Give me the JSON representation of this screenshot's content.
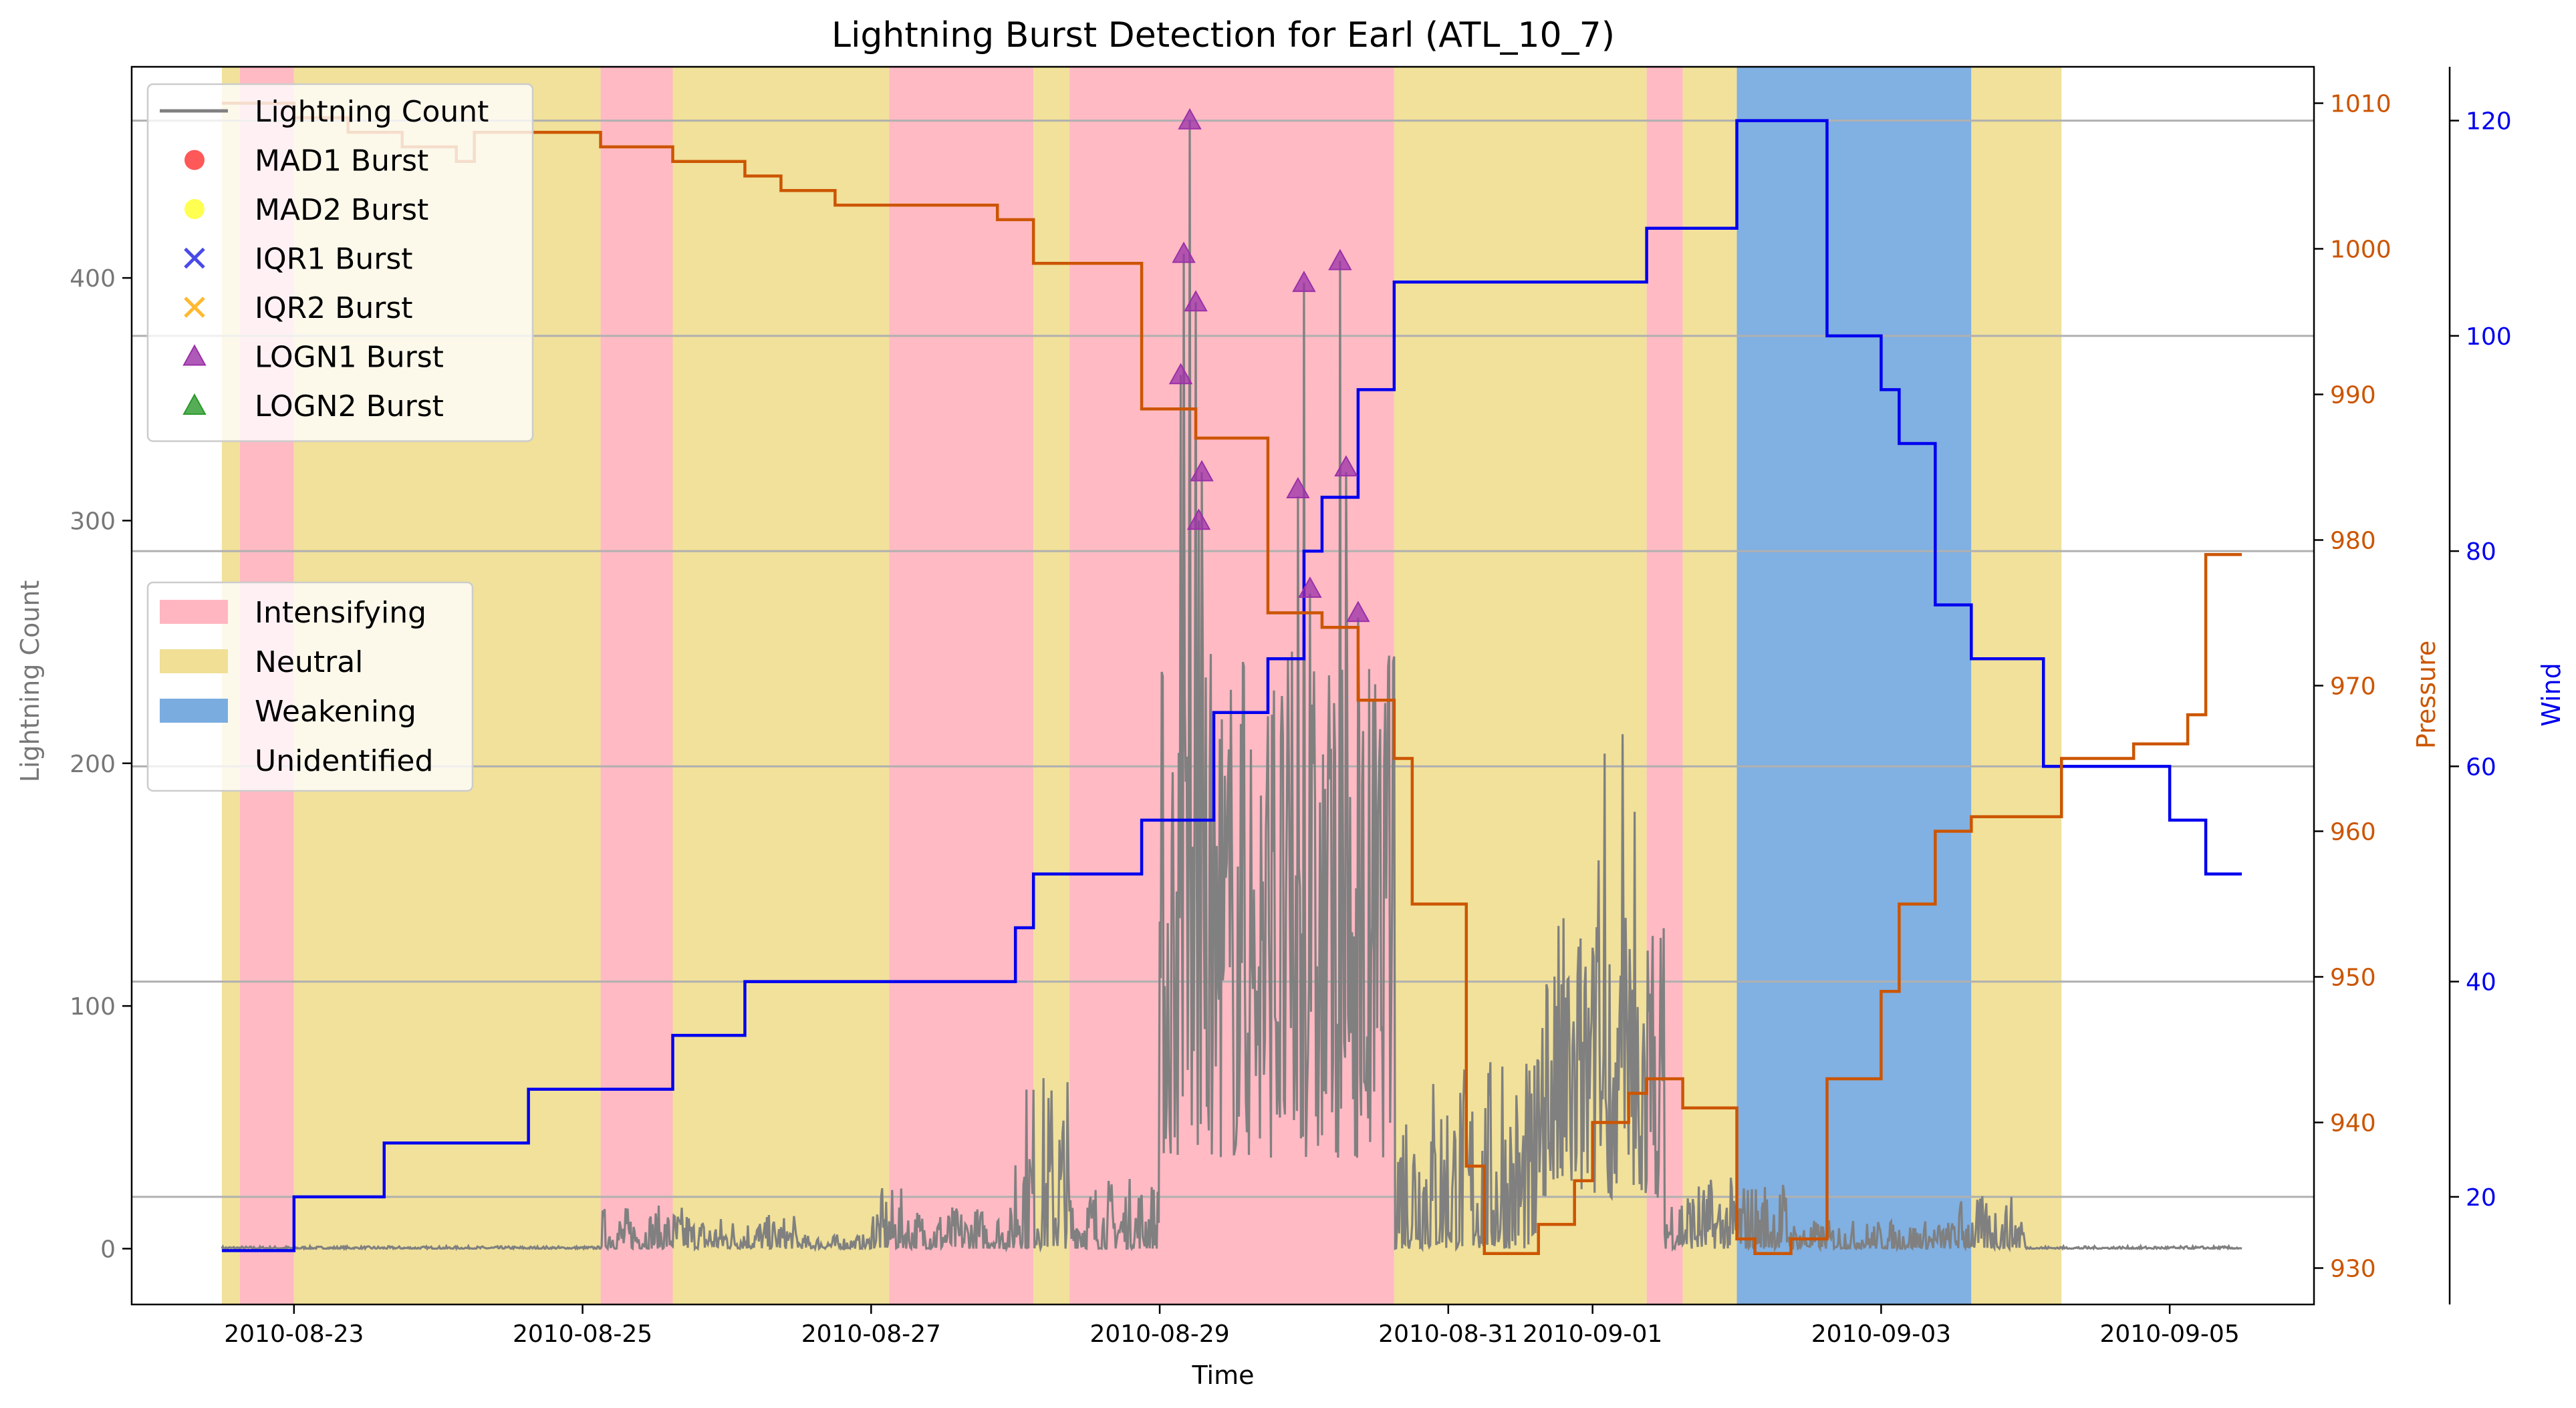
{
  "colors": {
    "intensifying": "#ffb6c1",
    "neutral": "#f0df95",
    "weakening": "#7aace0",
    "lightning": "#808080",
    "pressure": "#cc5500",
    "wind": "#0000ee",
    "logn1": "#9b30a8",
    "mad1": "#ff3b3b",
    "mad2": "#ffff33",
    "iqr1": "#4a4ae8",
    "iqr2": "#ffb830",
    "logn2": "#2a9a2a",
    "grid": "#b0b0b0",
    "axis": "#000000"
  },
  "chart_data": {
    "type": "line",
    "title": "Lightning Burst Detection for Earl (ATL_10_7)",
    "xlabel": "Time",
    "ylabel_left": "Lightning Count",
    "ylabel_pressure": "Pressure",
    "ylabel_wind": "Wind",
    "x_range": [
      "2010-08-21 21:00",
      "2010-09-06 00:00"
    ],
    "y_left_range": [
      -23,
      487
    ],
    "y_pressure_range": [
      927.5,
      1012.5
    ],
    "y_wind_range": [
      10,
      125
    ],
    "x_ticks": [
      "2010-08-23",
      "2010-08-25",
      "2010-08-27",
      "2010-08-29",
      "2010-08-31",
      "2010-09-01",
      "2010-09-03",
      "2010-09-05"
    ],
    "x_tick_values": [
      "2010-08-23",
      "2010-08-25",
      "2010-08-27",
      "2010-08-29",
      "2010-08-31",
      "2010-09-01",
      "2010-09-03",
      "2010-09-05"
    ],
    "y_left_ticks": [
      "0",
      "100",
      "200",
      "300",
      "400"
    ],
    "y_left_tick_values": [
      0,
      100,
      200,
      300,
      400
    ],
    "y_pressure_ticks": [
      "930",
      "940",
      "950",
      "960",
      "970",
      "980",
      "990",
      "1000",
      "1010"
    ],
    "y_pressure_tick_values": [
      930,
      940,
      950,
      960,
      970,
      980,
      990,
      1000,
      1010
    ],
    "y_wind_ticks": [
      "20",
      "40",
      "60",
      "80",
      "100",
      "120"
    ],
    "y_wind_tick_values": [
      20,
      40,
      60,
      80,
      100,
      120
    ],
    "grid": "horizontal (wind axis)",
    "legend_series": [
      {
        "label": "Lightning Count",
        "marker": "line",
        "colorKey": "lightning"
      },
      {
        "label": "MAD1 Burst",
        "marker": "circle",
        "colorKey": "mad1"
      },
      {
        "label": "MAD2 Burst",
        "marker": "circle",
        "colorKey": "mad2"
      },
      {
        "label": "IQR1 Burst",
        "marker": "x",
        "colorKey": "iqr1"
      },
      {
        "label": "IQR2 Burst",
        "marker": "x",
        "colorKey": "iqr2"
      },
      {
        "label": "LOGN1 Burst",
        "marker": "triangle",
        "colorKey": "logn1"
      },
      {
        "label": "LOGN2 Burst",
        "marker": "triangle",
        "colorKey": "logn2"
      }
    ],
    "legend_phases": [
      {
        "label": "Intensifying",
        "colorKey": "intensifying"
      },
      {
        "label": "Neutral",
        "colorKey": "neutral"
      },
      {
        "label": "Weakening",
        "colorKey": "weakening"
      },
      {
        "label": "Unidentified",
        "colorKey": null
      }
    ],
    "phases": [
      {
        "start": "2010-08-22 12:00",
        "end": "2010-08-22 15:00",
        "phase": "neutral"
      },
      {
        "start": "2010-08-22 15:00",
        "end": "2010-08-23 00:00",
        "phase": "intensifying"
      },
      {
        "start": "2010-08-23 00:00",
        "end": "2010-08-25 03:00",
        "phase": "neutral"
      },
      {
        "start": "2010-08-25 03:00",
        "end": "2010-08-25 15:00",
        "phase": "intensifying"
      },
      {
        "start": "2010-08-25 15:00",
        "end": "2010-08-27 03:00",
        "phase": "neutral"
      },
      {
        "start": "2010-08-27 03:00",
        "end": "2010-08-28 03:00",
        "phase": "intensifying"
      },
      {
        "start": "2010-08-28 03:00",
        "end": "2010-08-28 09:00",
        "phase": "neutral"
      },
      {
        "start": "2010-08-28 09:00",
        "end": "2010-08-30 15:00",
        "phase": "intensifying"
      },
      {
        "start": "2010-08-30 15:00",
        "end": "2010-09-01 09:00",
        "phase": "neutral"
      },
      {
        "start": "2010-09-01 09:00",
        "end": "2010-09-01 15:00",
        "phase": "intensifying"
      },
      {
        "start": "2010-09-01 15:00",
        "end": "2010-09-02 00:00",
        "phase": "neutral"
      },
      {
        "start": "2010-09-02 00:00",
        "end": "2010-09-03 15:00",
        "phase": "weakening"
      },
      {
        "start": "2010-09-03 15:00",
        "end": "2010-09-04 06:00",
        "phase": "neutral"
      }
    ],
    "wind_steps": [
      [
        "2010-08-22 12:00",
        15
      ],
      [
        "2010-08-23 00:00",
        20
      ],
      [
        "2010-08-23 15:00",
        25
      ],
      [
        "2010-08-24 15:00",
        30
      ],
      [
        "2010-08-25 15:00",
        35
      ],
      [
        "2010-08-26 03:00",
        40
      ],
      [
        "2010-08-28 00:00",
        45
      ],
      [
        "2010-08-28 03:00",
        50
      ],
      [
        "2010-08-28 21:00",
        55
      ],
      [
        "2010-08-29 09:00",
        65
      ],
      [
        "2010-08-29 18:00",
        70
      ],
      [
        "2010-08-30 00:00",
        80
      ],
      [
        "2010-08-30 03:00",
        85
      ],
      [
        "2010-08-30 09:00",
        95
      ],
      [
        "2010-08-30 15:00",
        105
      ],
      [
        "2010-09-01 09:00",
        110
      ],
      [
        "2010-09-02 00:00",
        120
      ],
      [
        "2010-09-02 15:00",
        100
      ],
      [
        "2010-09-03 00:00",
        95
      ],
      [
        "2010-09-03 03:00",
        90
      ],
      [
        "2010-09-03 09:00",
        75
      ],
      [
        "2010-09-03 15:00",
        70
      ],
      [
        "2010-09-04 03:00",
        60
      ],
      [
        "2010-09-05 00:00",
        55
      ],
      [
        "2010-09-05 06:00",
        50
      ],
      [
        "2010-09-05 12:00",
        50
      ]
    ],
    "pressure_steps": [
      [
        "2010-08-22 12:00",
        1010
      ],
      [
        "2010-08-23 00:00",
        1009
      ],
      [
        "2010-08-23 09:00",
        1008
      ],
      [
        "2010-08-23 18:00",
        1007
      ],
      [
        "2010-08-24 03:00",
        1006
      ],
      [
        "2010-08-24 06:00",
        1008
      ],
      [
        "2010-08-25 03:00",
        1007
      ],
      [
        "2010-08-25 15:00",
        1006
      ],
      [
        "2010-08-26 03:00",
        1005
      ],
      [
        "2010-08-26 09:00",
        1004
      ],
      [
        "2010-08-26 18:00",
        1003
      ],
      [
        "2010-08-27 21:00",
        1002
      ],
      [
        "2010-08-28 03:00",
        999
      ],
      [
        "2010-08-28 21:00",
        989
      ],
      [
        "2010-08-29 06:00",
        987
      ],
      [
        "2010-08-29 18:00",
        975
      ],
      [
        "2010-08-30 03:00",
        974
      ],
      [
        "2010-08-30 09:00",
        969
      ],
      [
        "2010-08-30 15:00",
        965
      ],
      [
        "2010-08-30 18:00",
        955
      ],
      [
        "2010-08-31 03:00",
        937
      ],
      [
        "2010-08-31 06:00",
        931
      ],
      [
        "2010-08-31 15:00",
        933
      ],
      [
        "2010-08-31 21:00",
        936
      ],
      [
        "2010-09-01 00:00",
        940
      ],
      [
        "2010-09-01 06:00",
        942
      ],
      [
        "2010-09-01 09:00",
        943
      ],
      [
        "2010-09-01 15:00",
        941
      ],
      [
        "2010-09-02 00:00",
        932
      ],
      [
        "2010-09-02 03:00",
        931
      ],
      [
        "2010-09-02 09:00",
        932
      ],
      [
        "2010-09-02 15:00",
        943
      ],
      [
        "2010-09-03 00:00",
        949
      ],
      [
        "2010-09-03 03:00",
        955
      ],
      [
        "2010-09-03 09:00",
        960
      ],
      [
        "2010-09-03 15:00",
        961
      ],
      [
        "2010-09-04 06:00",
        965
      ],
      [
        "2010-09-04 18:00",
        966
      ],
      [
        "2010-09-05 03:00",
        968
      ],
      [
        "2010-09-05 06:00",
        979
      ],
      [
        "2010-09-05 12:00",
        979
      ]
    ],
    "lightning_end": "2010-09-05 12:00",
    "lightning_envelope": [
      {
        "start": "2010-08-22 12:00",
        "end": "2010-08-25 03:00",
        "peak": 1
      },
      {
        "start": "2010-08-25 03:00",
        "end": "2010-08-25 18:00",
        "peak": 18
      },
      {
        "start": "2010-08-25 18:00",
        "end": "2010-08-26 12:00",
        "peak": 14
      },
      {
        "start": "2010-08-26 12:00",
        "end": "2010-08-27 00:00",
        "peak": 6
      },
      {
        "start": "2010-08-27 00:00",
        "end": "2010-08-27 06:00",
        "peak": 25
      },
      {
        "start": "2010-08-27 06:00",
        "end": "2010-08-28 00:00",
        "peak": 18
      },
      {
        "start": "2010-08-28 00:00",
        "end": "2010-08-28 09:00",
        "peak": 75
      },
      {
        "start": "2010-08-28 09:00",
        "end": "2010-08-29 00:00",
        "peak": 30
      },
      {
        "start": "2010-08-29 00:00",
        "end": "2010-08-29 12:00",
        "peak": 250
      },
      {
        "start": "2010-08-29 12:00",
        "end": "2010-08-30 15:00",
        "peak": 250
      },
      {
        "start": "2010-08-30 15:00",
        "end": "2010-08-31 15:00",
        "peak": 80
      },
      {
        "start": "2010-08-31 15:00",
        "end": "2010-09-01 12:00",
        "peak": 140
      },
      {
        "start": "2010-09-01 12:00",
        "end": "2010-09-02 09:00",
        "peak": 30
      },
      {
        "start": "2010-09-02 09:00",
        "end": "2010-09-03 12:00",
        "peak": 12
      },
      {
        "start": "2010-09-03 12:00",
        "end": "2010-09-04 00:00",
        "peak": 22
      },
      {
        "start": "2010-09-04 00:00",
        "end": "2010-09-05 12:00",
        "peak": 1
      }
    ],
    "lightning_spikes": [
      [
        "2010-08-29 04:00",
        410
      ],
      [
        "2010-08-29 05:00",
        465
      ],
      [
        "2010-08-29 06:00",
        390
      ],
      [
        "2010-08-29 03:30",
        360
      ],
      [
        "2010-08-29 07:00",
        320
      ],
      [
        "2010-08-29 06:30",
        300
      ],
      [
        "2010-08-29 10:00",
        210
      ],
      [
        "2010-08-29 14:00",
        240
      ],
      [
        "2010-08-29 19:00",
        230
      ],
      [
        "2010-08-29 23:00",
        310
      ],
      [
        "2010-08-30 00:00",
        398
      ],
      [
        "2010-08-30 01:00",
        270
      ],
      [
        "2010-08-30 04:00",
        200
      ],
      [
        "2010-08-30 06:00",
        407
      ],
      [
        "2010-08-30 07:00",
        320
      ],
      [
        "2010-08-30 09:00",
        260
      ],
      [
        "2010-08-30 12:00",
        180
      ],
      [
        "2010-08-30 14:00",
        240
      ],
      [
        "2010-08-30 15:00",
        244
      ],
      [
        "2010-08-31 09:00",
        75
      ],
      [
        "2010-08-31 18:00",
        100
      ],
      [
        "2010-08-31 21:00",
        80
      ],
      [
        "2010-09-01 02:00",
        204
      ],
      [
        "2010-09-01 05:00",
        212
      ],
      [
        "2010-09-01 07:00",
        180
      ],
      [
        "2010-09-01 01:00",
        160
      ]
    ],
    "logn1_bursts": [
      [
        "2010-08-29 03:30",
        360
      ],
      [
        "2010-08-29 04:00",
        410
      ],
      [
        "2010-08-29 05:00",
        465
      ],
      [
        "2010-08-29 06:00",
        390
      ],
      [
        "2010-08-29 07:00",
        320
      ],
      [
        "2010-08-29 06:30",
        300
      ],
      [
        "2010-08-29 23:00",
        313
      ],
      [
        "2010-08-30 00:00",
        398
      ],
      [
        "2010-08-30 01:00",
        272
      ],
      [
        "2010-08-30 06:00",
        407
      ],
      [
        "2010-08-30 07:00",
        322
      ],
      [
        "2010-08-30 09:00",
        262
      ]
    ]
  }
}
